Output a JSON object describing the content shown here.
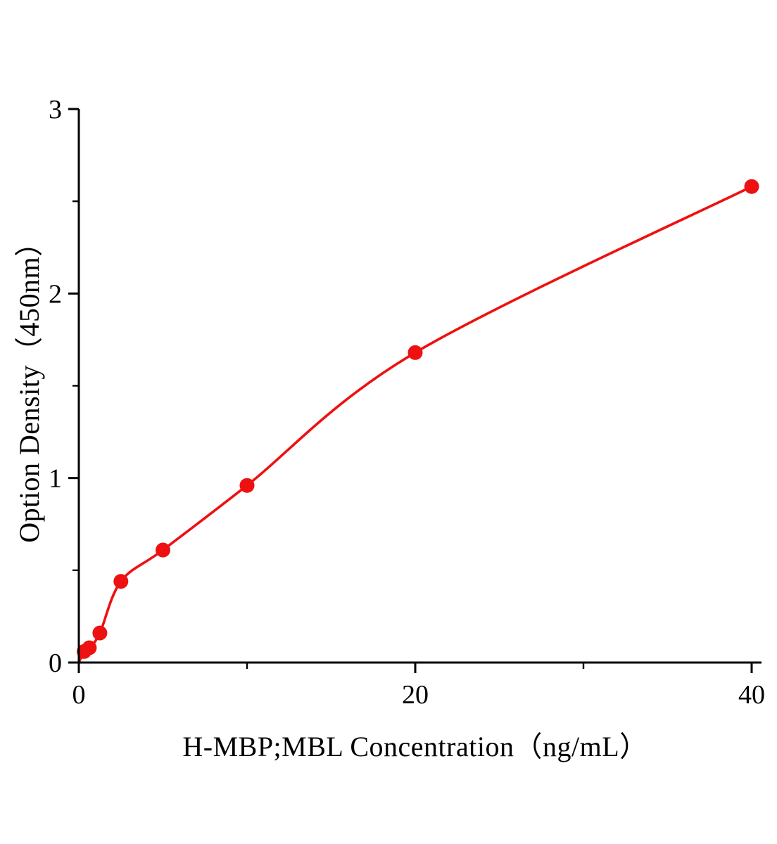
{
  "figure": {
    "background_color": "#ffffff",
    "accent_color": "#ee1111",
    "axis_color": "#000000"
  },
  "chart_data": {
    "type": "scatter",
    "title": "",
    "xlabel": "H-MBP;MBL Concentration（ng/mL）",
    "ylabel": "Option Density（450nm）",
    "x": [
      0.3125,
      0.625,
      1.25,
      2.5,
      5,
      10,
      20,
      40
    ],
    "y": [
      0.06,
      0.08,
      0.16,
      0.44,
      0.61,
      0.96,
      1.68,
      2.58
    ],
    "curve": {
      "style": "smooth-through-points",
      "start_at_origin": true
    },
    "xlim": [
      0,
      40.8
    ],
    "ylim": [
      0,
      3
    ],
    "x_ticks": {
      "major": [
        0,
        20,
        40
      ],
      "minor": [
        10,
        30
      ]
    },
    "y_ticks": {
      "major": [
        0,
        1,
        2,
        3
      ],
      "minor": [
        0.5,
        1.5,
        2.5
      ]
    },
    "grid": false,
    "legend": false,
    "marker_color": "#ee1111",
    "line_color": "#ee1111",
    "axis_color": "#000000"
  }
}
